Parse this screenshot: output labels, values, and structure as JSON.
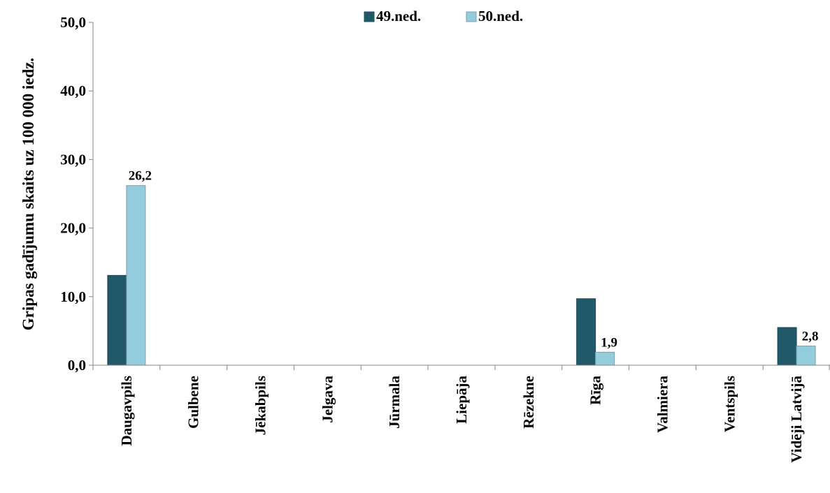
{
  "chart_data": {
    "type": "bar",
    "ylabel": "Gripas gadījumu skaits uz 100 000 iedz.",
    "ylim": [
      0,
      50
    ],
    "yticks": [
      "0,0",
      "10,0",
      "20,0",
      "30,0",
      "40,0",
      "50,0"
    ],
    "grid": false,
    "legend_position": "top",
    "categories": [
      "Daugavpils",
      "Gulbene",
      "Jēkabpils",
      "Jelgava",
      "Jūrmala",
      "Liepāja",
      "Rēzekne",
      "Rīga",
      "Valmiera",
      "Ventspils",
      "Vidēji Latvijā"
    ],
    "series": [
      {
        "name": "49.ned.",
        "color": "#215968",
        "values": [
          13.1,
          0,
          0,
          0,
          0,
          0,
          0,
          9.7,
          0,
          0,
          5.5
        ],
        "labels": [
          "",
          "",
          "",
          "",
          "",
          "",
          "",
          "",
          "",
          "",
          ""
        ]
      },
      {
        "name": "50.ned.",
        "color": "#93CDDD",
        "values": [
          26.2,
          0,
          0,
          0,
          0,
          0,
          0,
          1.9,
          0,
          0,
          2.8
        ],
        "labels": [
          "26,2",
          "",
          "",
          "",
          "",
          "",
          "",
          "1,9",
          "",
          "",
          "2,8"
        ]
      }
    ]
  }
}
